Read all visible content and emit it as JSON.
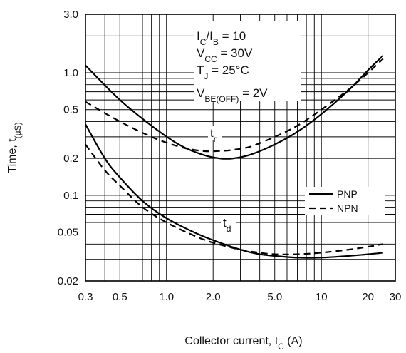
{
  "chart_data": {
    "type": "line",
    "title": "",
    "xlabel": {
      "text": "Collector current, I",
      "sub": "C",
      "suffix": " (A)"
    },
    "ylabel": {
      "text": "Time, t",
      "sub": "(μS)"
    },
    "x_scale": "log",
    "y_scale": "log",
    "xlim": [
      0.3,
      30
    ],
    "ylim": [
      0.02,
      3.0
    ],
    "x_ticks": [
      {
        "v": 0.3,
        "label": "0.3"
      },
      {
        "v": 0.5,
        "label": "0.5"
      },
      {
        "v": 1.0,
        "label": "1.0"
      },
      {
        "v": 2.0,
        "label": "2.0"
      },
      {
        "v": 5.0,
        "label": "5.0"
      },
      {
        "v": 10,
        "label": "10"
      },
      {
        "v": 20,
        "label": "20"
      },
      {
        "v": 30,
        "label": "30"
      }
    ],
    "y_ticks": [
      {
        "v": 3.0,
        "label": "3.0"
      },
      {
        "v": 1.0,
        "label": "1.0"
      },
      {
        "v": 0.5,
        "label": "0.5"
      },
      {
        "v": 0.2,
        "label": "0.2"
      },
      {
        "v": 0.1,
        "label": "0.1"
      },
      {
        "v": 0.05,
        "label": "0.05"
      },
      {
        "v": 0.02,
        "label": "0.02"
      }
    ],
    "grid": true,
    "conditions": [
      {
        "main": "I",
        "sub": "C",
        "rest": "/I",
        "sub2": "B",
        "tail": " = 10"
      },
      {
        "main": "V",
        "sub": "CC",
        "rest": " = 30V",
        "sub2": "",
        "tail": ""
      },
      {
        "main": "T",
        "sub": "J",
        "rest": " = 25°C",
        "sub2": "",
        "tail": ""
      },
      {
        "main": "V",
        "sub": "BE(OFF)",
        "rest": " = 2V",
        "sub2": "",
        "tail": ""
      }
    ],
    "curve_labels": [
      {
        "main": "t",
        "sub": "r"
      },
      {
        "main": "t",
        "sub": "d"
      }
    ],
    "legend_position": "right",
    "series": [
      {
        "name": "PNP",
        "style": "solid",
        "curve": "tr",
        "x": [
          0.3,
          0.5,
          0.8,
          1.2,
          1.7,
          2.2,
          2.7,
          3.5,
          5,
          7,
          10,
          15,
          20,
          25
        ],
        "y": [
          1.15,
          0.6,
          0.37,
          0.26,
          0.215,
          0.2,
          0.2,
          0.215,
          0.26,
          0.33,
          0.46,
          0.72,
          1.05,
          1.38
        ]
      },
      {
        "name": "NPN",
        "style": "dashed",
        "curve": "tr",
        "x": [
          0.3,
          0.5,
          0.8,
          1.2,
          1.7,
          2.2,
          2.7,
          3.5,
          5,
          7,
          10,
          15,
          20,
          25
        ],
        "y": [
          0.58,
          0.4,
          0.3,
          0.25,
          0.23,
          0.23,
          0.235,
          0.25,
          0.3,
          0.37,
          0.5,
          0.73,
          1.0,
          1.3
        ]
      },
      {
        "name": "PNP",
        "style": "solid",
        "curve": "td",
        "x": [
          0.3,
          0.4,
          0.5,
          0.7,
          1.0,
          1.5,
          2.0,
          3.0,
          4.0,
          5.0,
          7.0,
          10,
          15,
          20,
          25
        ],
        "y": [
          0.38,
          0.2,
          0.14,
          0.09,
          0.065,
          0.05,
          0.043,
          0.036,
          0.033,
          0.032,
          0.031,
          0.031,
          0.032,
          0.033,
          0.034
        ]
      },
      {
        "name": "NPN",
        "style": "dashed",
        "curve": "td",
        "x": [
          0.3,
          0.4,
          0.5,
          0.7,
          1.0,
          1.5,
          2.0,
          3.0,
          4.0,
          5.0,
          7.0,
          10,
          15,
          20,
          25
        ],
        "y": [
          0.26,
          0.16,
          0.12,
          0.08,
          0.06,
          0.047,
          0.041,
          0.036,
          0.034,
          0.033,
          0.033,
          0.034,
          0.036,
          0.038,
          0.04
        ]
      }
    ],
    "legend": [
      {
        "name": "PNP",
        "style": "solid"
      },
      {
        "name": "NPN",
        "style": "dashed"
      }
    ]
  }
}
